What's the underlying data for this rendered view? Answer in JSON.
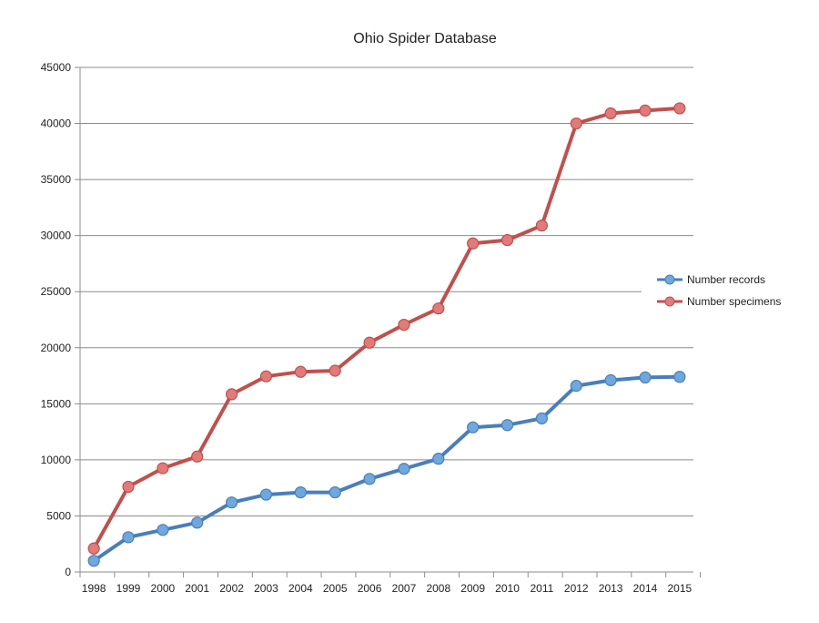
{
  "chart_data": {
    "type": "line",
    "title": "Ohio Spider Database",
    "xlabel": "",
    "ylabel": "",
    "x": [
      "1998",
      "1999",
      "2000",
      "2001",
      "2002",
      "2003",
      "2004",
      "2005",
      "2006",
      "2007",
      "2008",
      "2009",
      "2010",
      "2011",
      "2012",
      "2013",
      "2014",
      "2015"
    ],
    "ylim": [
      0,
      45000
    ],
    "yticks": [
      "0",
      "5000",
      "10000",
      "15000",
      "20000",
      "25000",
      "30000",
      "35000",
      "40000",
      "45000"
    ],
    "grid": true,
    "legend_position": "right",
    "series": [
      {
        "name": "Number records",
        "color": "#4a7ebb",
        "marker_color": "#6fa8dc",
        "values": [
          1000,
          3100,
          3750,
          4400,
          6200,
          6900,
          7100,
          7100,
          8300,
          9200,
          10100,
          12900,
          13100,
          13700,
          16600,
          17100,
          17350,
          17400
        ]
      },
      {
        "name": "Number specimens",
        "color": "#c0504d",
        "marker_color": "#e07b79",
        "values": [
          2100,
          7600,
          9250,
          10300,
          15850,
          17450,
          17850,
          17950,
          20450,
          22050,
          23500,
          29300,
          29600,
          30900,
          40000,
          40900,
          41150,
          41350
        ]
      }
    ]
  }
}
